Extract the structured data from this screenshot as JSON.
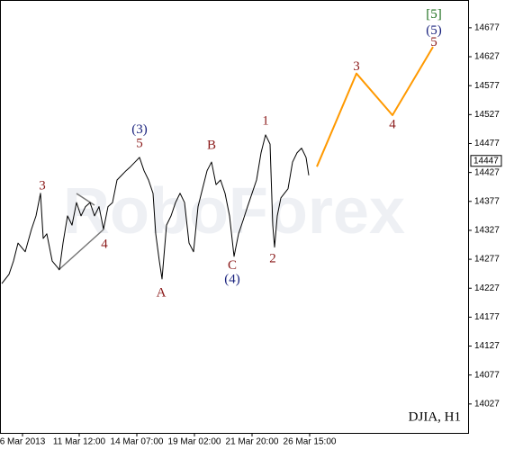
{
  "chart_data": {
    "type": "line",
    "title": "DJIA, H1",
    "watermark": "RoboForex",
    "xlim": [
      0,
      260
    ],
    "ylim": [
      13977,
      14725
    ],
    "xticks": [
      {
        "value": 12.5,
        "label": "6 Mar 2013"
      },
      {
        "value": 44,
        "label": "11 Mar 12:00"
      },
      {
        "value": 76,
        "label": "14 Mar 07:00"
      },
      {
        "value": 108,
        "label": "19 Mar 02:00"
      },
      {
        "value": 140,
        "label": "21 Mar 20:00"
      },
      {
        "value": 172,
        "label": "26 Mar 15:00"
      }
    ],
    "yticks": [
      14027,
      14077,
      14127,
      14177,
      14227,
      14277,
      14327,
      14377,
      14427,
      14477,
      14527,
      14577,
      14627,
      14677
    ],
    "last_price": 14447,
    "series": [
      {
        "color": "#000000",
        "x": [
          1,
          5,
          7.5,
          10,
          14,
          17.5,
          20,
          22.5,
          24,
          26,
          29,
          33,
          35,
          37.5,
          40,
          42.5,
          45,
          47.5,
          50,
          52.5,
          55,
          57.5,
          60,
          62.5,
          65,
          67.5,
          70,
          72.5,
          75,
          77.5,
          80,
          82.5,
          85,
          86.5,
          88.5,
          90,
          92.5,
          95,
          97.5,
          100,
          102.5,
          105,
          107.5,
          110,
          112.5,
          115,
          117.5,
          120,
          122.5,
          125,
          127.5,
          130,
          132.5,
          135,
          137.5,
          140,
          142.5,
          145,
          147.5,
          150,
          151.5,
          152.5,
          154,
          156,
          158,
          160,
          162.5,
          165,
          167.5,
          170,
          171.5
        ],
        "values": [
          14235,
          14251,
          14274,
          14305,
          14290,
          14329,
          14352,
          14391,
          14313,
          14321,
          14274,
          14259,
          14305,
          14352,
          14336,
          14375,
          14352,
          14368,
          14375,
          14352,
          14368,
          14329,
          14368,
          14375,
          14414,
          14422,
          14430,
          14437,
          14445,
          14453,
          14430,
          14414,
          14391,
          14321,
          14274,
          14243,
          14336,
          14352,
          14375,
          14391,
          14375,
          14305,
          14290,
          14368,
          14399,
          14430,
          14445,
          14406,
          14414,
          14391,
          14352,
          14282,
          14321,
          14344,
          14368,
          14391,
          14414,
          14461,
          14492,
          14476,
          14336,
          14298,
          14352,
          14383,
          14391,
          14399,
          14445,
          14461,
          14469,
          14453,
          14422
        ]
      },
      {
        "color": "#ff9900",
        "x": [
          176,
          198,
          218,
          240.5
        ],
        "values": [
          14437,
          14598,
          14526,
          14644
        ]
      }
    ],
    "annotations": [
      {
        "text": "3",
        "x": 23.5,
        "y": 14403,
        "color": "#8b1a1a"
      },
      {
        "text": "4",
        "x": 58,
        "y": 14302,
        "color": "#8b1a1a"
      },
      {
        "text": "5",
        "x": 77.5,
        "y": 14476,
        "color": "#8b1a1a"
      },
      {
        "text": "(3)",
        "x": 77.5,
        "y": 14500,
        "color": "#1a237e"
      },
      {
        "text": "A",
        "x": 89.5,
        "y": 14218,
        "color": "#8b1a1a"
      },
      {
        "text": "B",
        "x": 117.5,
        "y": 14473,
        "color": "#8b1a1a"
      },
      {
        "text": "C",
        "x": 129,
        "y": 14265,
        "color": "#8b1a1a"
      },
      {
        "text": "(4)",
        "x": 129,
        "y": 14241,
        "color": "#1a237e"
      },
      {
        "text": "1",
        "x": 147.5,
        "y": 14515,
        "color": "#8b1a1a"
      },
      {
        "text": "2",
        "x": 151.5,
        "y": 14277,
        "color": "#8b1a1a"
      },
      {
        "text": "3",
        "x": 198,
        "y": 14609,
        "color": "#8b1a1a"
      },
      {
        "text": "4",
        "x": 218,
        "y": 14509,
        "color": "#8b1a1a"
      },
      {
        "text": "5",
        "x": 241,
        "y": 14651,
        "color": "#8b1a1a"
      },
      {
        "text": "(5)",
        "x": 241,
        "y": 14671,
        "color": "#1a237e"
      },
      {
        "text": "[5]",
        "x": 241,
        "y": 14699,
        "color": "#1b6e1b"
      }
    ]
  }
}
